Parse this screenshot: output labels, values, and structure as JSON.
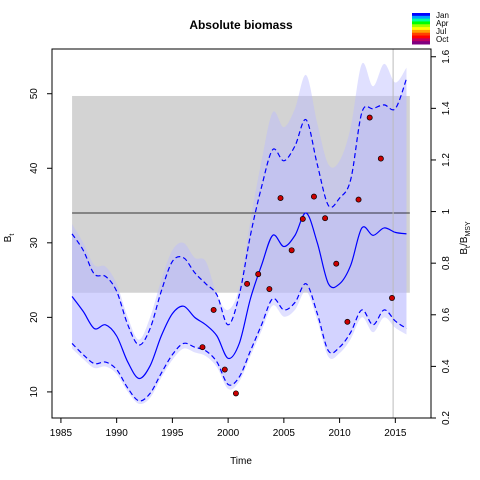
{
  "chart_data": {
    "type": "line",
    "title": "Absolute biomass",
    "xlabel": "Time",
    "ylabel": "B",
    "ylabel_sub": "t",
    "y2label": "B",
    "y2label_sub": "t",
    "y2label_mid": "/B",
    "y2label_sub2": "MSY",
    "xlim": [
      1984.2,
      2018.2
    ],
    "ylim": [
      6.5,
      56
    ],
    "y2lim": [
      0.2,
      1.63
    ],
    "x_ticks": [
      1985,
      1990,
      1995,
      2000,
      2005,
      2010,
      2015
    ],
    "y_ticks": [
      10,
      20,
      30,
      40,
      50
    ],
    "y2_ticks": [
      0.2,
      0.4,
      0.6,
      0.8,
      1,
      1.2,
      1.4,
      1.6
    ],
    "y2_tick_labels": [
      "0.2",
      "0.4",
      "0.6",
      "0.8",
      "1",
      "1.2",
      "1.4",
      "1.6"
    ],
    "bmsy": 34.0,
    "bmsy_band": [
      23.3,
      49.7
    ],
    "band_xrange": [
      1986,
      2016.3
    ],
    "prediction_start": 2014.8,
    "colors": {
      "band": "#d3d3d3",
      "estimate": "#0000ff",
      "ci_fill": "#bbbbff",
      "points": "#cc0000"
    },
    "legend": {
      "labels": [
        "Jan",
        "Apr",
        "Jul",
        "Oct"
      ],
      "colors": [
        "#0000ff",
        "#00a0ff",
        "#00ffa0",
        "#00ff00",
        "#a0ff00",
        "#ffff00",
        "#ffa000",
        "#ff4000",
        "#ff0000",
        "#c00060",
        "#800080"
      ]
    },
    "series": [
      {
        "name": "estimate",
        "x": [
          1986,
          1987,
          1988,
          1989,
          1990,
          1991,
          1992,
          1993,
          1994,
          1995,
          1996,
          1997,
          1998,
          1999,
          2000,
          2001,
          2002,
          2003,
          2004,
          2005,
          2006,
          2007,
          2008,
          2009,
          2010,
          2011,
          2012,
          2013,
          2014,
          2015,
          2016
        ],
        "y": [
          22.8,
          20.8,
          18.5,
          19.0,
          17.5,
          14.0,
          11.8,
          13.5,
          17.5,
          20.5,
          21.5,
          20.0,
          19.0,
          17.5,
          14.5,
          16.5,
          22.5,
          27.0,
          31.0,
          29.5,
          31.0,
          34.0,
          30.0,
          24.5,
          24.5,
          27.0,
          32.0,
          31.0,
          32.0,
          31.4,
          31.2
        ]
      },
      {
        "name": "upper",
        "x": [
          1986,
          1987,
          1988,
          1989,
          1990,
          1991,
          1992,
          1993,
          1994,
          1995,
          1996,
          1997,
          1998,
          1999,
          2000,
          2001,
          2002,
          2003,
          2004,
          2005,
          2006,
          2007,
          2008,
          2009,
          2010,
          2011,
          2012,
          2013,
          2014,
          2015,
          2016
        ],
        "y": [
          31.2,
          29.0,
          25.8,
          25.5,
          23.5,
          19.0,
          16.3,
          18.5,
          23.5,
          27.5,
          28.0,
          26.0,
          24.5,
          23.0,
          19.0,
          23.0,
          31.0,
          37.5,
          42.5,
          41.0,
          43.0,
          46.5,
          40.5,
          35.0,
          36.0,
          38.5,
          47.5,
          48.0,
          48.5,
          48.0,
          52.0
        ]
      },
      {
        "name": "lower",
        "x": [
          1986,
          1987,
          1988,
          1989,
          1990,
          1991,
          1992,
          1993,
          1994,
          1995,
          1996,
          1997,
          1998,
          1999,
          2000,
          2001,
          2002,
          2003,
          2004,
          2005,
          2006,
          2007,
          2008,
          2009,
          2010,
          2011,
          2012,
          2013,
          2014,
          2015,
          2016
        ],
        "y": [
          16.5,
          15.0,
          13.8,
          14.0,
          13.0,
          10.5,
          8.8,
          9.8,
          12.5,
          15.0,
          16.5,
          16.0,
          15.5,
          14.0,
          11.0,
          12.0,
          15.5,
          19.0,
          22.5,
          21.0,
          22.0,
          24.5,
          20.5,
          15.5,
          16.0,
          18.0,
          21.0,
          19.0,
          21.0,
          19.5,
          18.5
        ]
      },
      {
        "name": "outer_upper",
        "x": [
          1986,
          1987,
          1988,
          1989,
          1990,
          1991,
          1992,
          1993,
          1994,
          1995,
          1996,
          1997,
          1998,
          1999,
          2000,
          2001,
          2002,
          2003,
          2004,
          2005,
          2006,
          2007,
          2008,
          2009,
          2010,
          2011,
          2012,
          2013,
          2014,
          2015,
          2016
        ],
        "y": [
          32.5,
          30.0,
          27.0,
          26.8,
          24.5,
          20.0,
          17.0,
          20.0,
          25.0,
          29.0,
          30.0,
          28.0,
          27.5,
          23.0,
          21.0,
          24.0,
          33.0,
          41.0,
          47.5,
          45.5,
          48.0,
          52.5,
          46.0,
          40.5,
          41.0,
          45.5,
          54.0,
          51.0,
          54.0,
          51.5,
          53.5
        ]
      },
      {
        "name": "outer_lower",
        "x": [
          1986,
          1987,
          1988,
          1989,
          1990,
          1991,
          1992,
          1993,
          1994,
          1995,
          1996,
          1997,
          1998,
          1999,
          2000,
          2001,
          2002,
          2003,
          2004,
          2005,
          2006,
          2007,
          2008,
          2009,
          2010,
          2011,
          2012,
          2013,
          2014,
          2015,
          2016
        ],
        "y": [
          15.8,
          14.4,
          13.2,
          13.4,
          12.4,
          10.0,
          8.4,
          9.2,
          11.9,
          14.3,
          15.8,
          15.3,
          14.8,
          13.3,
          10.4,
          11.4,
          14.8,
          18.2,
          21.6,
          20.1,
          21.0,
          23.5,
          19.6,
          14.7,
          15.2,
          17.1,
          20.0,
          18.0,
          20.0,
          18.6,
          17.7
        ]
      }
    ],
    "points": {
      "x": [
        1997.7,
        1998.7,
        1999.7,
        2000.7,
        2001.7,
        2002.7,
        2003.7,
        2004.7,
        2005.7,
        2006.7,
        2007.7,
        2008.7,
        2009.7,
        2010.7,
        2011.7,
        2012.7,
        2013.7,
        2014.7
      ],
      "y": [
        16.0,
        21.0,
        13.0,
        9.8,
        24.5,
        25.8,
        23.8,
        36.0,
        29.0,
        33.2,
        36.2,
        33.3,
        27.2,
        19.4,
        35.8,
        46.8,
        41.3,
        22.6
      ]
    }
  }
}
